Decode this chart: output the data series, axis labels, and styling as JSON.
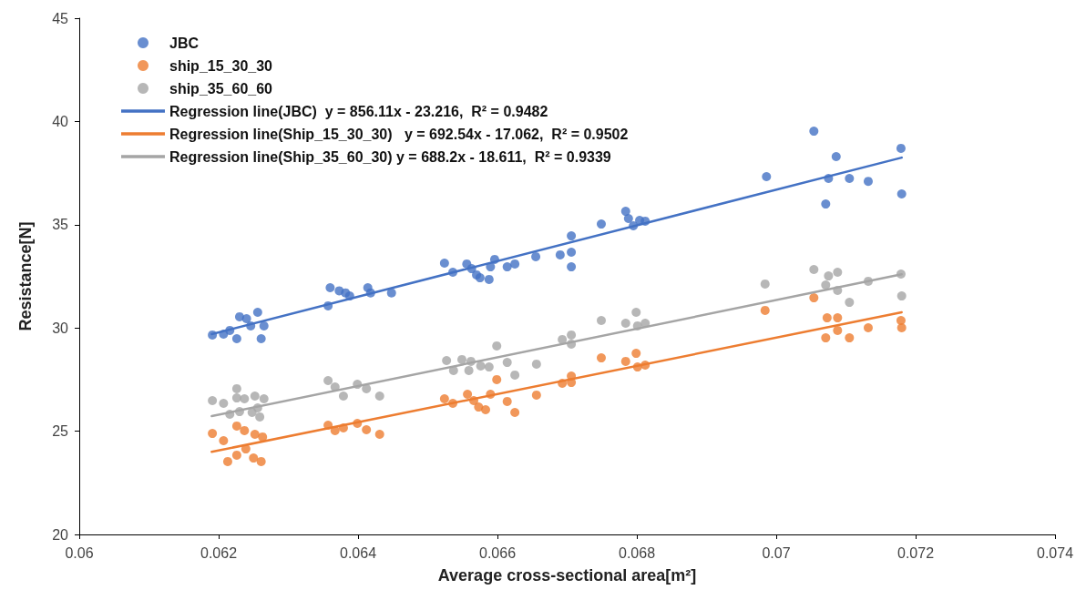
{
  "chart_data": {
    "type": "scatter",
    "xlabel": "Average cross-sectional area[m²]",
    "ylabel": "Resistance[N]",
    "xlim": [
      0.06,
      0.074
    ],
    "xticks": [
      0.06,
      0.062,
      0.064,
      0.066,
      0.068,
      0.07,
      0.072,
      0.074
    ],
    "ylim": [
      20,
      45
    ],
    "yticks": [
      20,
      25,
      30,
      35,
      40,
      45
    ],
    "grid": false,
    "legend": "top left",
    "marker": "circle",
    "series": [
      {
        "name": "JBC",
        "color": "#4472c4",
        "x": [
          0.06191,
          0.06207,
          0.06216,
          0.06226,
          0.0623,
          0.06246,
          0.06256,
          0.06261,
          0.06265,
          0.0624,
          0.06357,
          0.0636,
          0.06373,
          0.06382,
          0.06388,
          0.06414,
          0.06418,
          0.06448,
          0.06524,
          0.06536,
          0.06556,
          0.06563,
          0.0657,
          0.06575,
          0.06588,
          0.0659,
          0.06596,
          0.06614,
          0.06625,
          0.06655,
          0.0669,
          0.06706,
          0.06706,
          0.06706,
          0.06749,
          0.06784,
          0.06788,
          0.06795,
          0.06804,
          0.06812,
          0.06986,
          0.07054,
          0.07071,
          0.07075,
          0.07086,
          0.07105,
          0.07132,
          0.07179,
          0.0718
        ],
        "values": [
          29.66,
          29.7,
          29.88,
          29.48,
          30.54,
          30.1,
          30.76,
          29.48,
          30.1,
          30.45,
          31.07,
          31.95,
          31.8,
          31.7,
          31.55,
          31.95,
          31.7,
          31.7,
          33.14,
          32.7,
          33.1,
          32.87,
          32.57,
          32.43,
          32.35,
          32.96,
          33.32,
          32.96,
          33.1,
          33.45,
          33.54,
          34.46,
          33.67,
          32.96,
          35.03,
          35.65,
          35.3,
          34.95,
          35.21,
          35.17,
          37.33,
          39.53,
          36.0,
          37.24,
          38.3,
          37.24,
          37.1,
          38.7,
          36.49
        ]
      },
      {
        "name": "ship_15_30_30",
        "color": "#ed7d31",
        "x": [
          0.06191,
          0.06207,
          0.06226,
          0.06237,
          0.06252,
          0.06263,
          0.06239,
          0.06226,
          0.06213,
          0.0625,
          0.06261,
          0.06357,
          0.06367,
          0.06379,
          0.06399,
          0.06412,
          0.06431,
          0.06524,
          0.06536,
          0.06557,
          0.06566,
          0.06573,
          0.06583,
          0.0659,
          0.06599,
          0.06614,
          0.06625,
          0.06656,
          0.06693,
          0.06706,
          0.06706,
          0.06749,
          0.06784,
          0.06799,
          0.06801,
          0.06812,
          0.06984,
          0.07054,
          0.07073,
          0.07088,
          0.07088,
          0.07071,
          0.07105,
          0.07132,
          0.07179,
          0.0718
        ],
        "values": [
          24.89,
          24.54,
          25.25,
          25.03,
          24.85,
          24.72,
          24.14,
          23.84,
          23.53,
          23.7,
          23.53,
          25.29,
          25.03,
          25.16,
          25.38,
          25.07,
          24.85,
          26.57,
          26.35,
          26.79,
          26.48,
          26.17,
          26.04,
          26.79,
          27.5,
          26.44,
          25.91,
          26.75,
          27.32,
          27.67,
          27.36,
          28.55,
          28.38,
          28.77,
          28.11,
          28.2,
          30.85,
          31.46,
          30.49,
          30.49,
          29.88,
          29.52,
          29.52,
          30.01,
          30.36,
          30.01
        ]
      },
      {
        "name": "ship_35_60_60",
        "color": "#a5a5a5",
        "x": [
          0.06191,
          0.06207,
          0.06226,
          0.06226,
          0.06237,
          0.06252,
          0.06265,
          0.06216,
          0.0623,
          0.06248,
          0.06259,
          0.06256,
          0.06357,
          0.06367,
          0.06379,
          0.06399,
          0.06412,
          0.06431,
          0.06527,
          0.06537,
          0.06549,
          0.06559,
          0.06562,
          0.06576,
          0.06588,
          0.06599,
          0.06614,
          0.06625,
          0.06656,
          0.06693,
          0.06706,
          0.06706,
          0.06749,
          0.06784,
          0.06799,
          0.06801,
          0.06812,
          0.06984,
          0.07054,
          0.07071,
          0.07075,
          0.07088,
          0.07088,
          0.07105,
          0.07132,
          0.07179,
          0.0718
        ],
        "values": [
          26.48,
          26.35,
          27.06,
          26.61,
          26.57,
          26.7,
          26.57,
          25.82,
          25.95,
          25.91,
          25.69,
          26.13,
          27.45,
          27.14,
          26.7,
          27.27,
          27.06,
          26.7,
          28.42,
          27.94,
          28.47,
          27.94,
          28.38,
          28.16,
          28.11,
          29.13,
          28.33,
          27.72,
          28.25,
          29.44,
          29.66,
          29.22,
          30.36,
          30.23,
          30.76,
          30.1,
          30.23,
          32.13,
          32.83,
          32.08,
          32.52,
          32.7,
          31.82,
          31.24,
          32.26,
          32.61,
          31.55
        ]
      },
      {
        "name": "Regression line(JBC)  y = 856.11x - 23.216,  R² = 0.9482",
        "type": "line",
        "marker": "none",
        "color": "#4472c4",
        "x": [
          0.0619,
          0.0718
        ],
        "values": [
          29.7,
          38.25
        ]
      },
      {
        "name": "Regression line(Ship_15_30_30)   y = 692.54x - 17.062,  R² = 0.9502",
        "type": "line",
        "marker": "none",
        "color": "#ed7d31",
        "x": [
          0.0619,
          0.0718
        ],
        "values": [
          24.0,
          30.76
        ]
      },
      {
        "name": "Regression line(Ship_35_60_30) y = 688.2x - 18.611,  R² = 0.9339",
        "type": "line",
        "marker": "none",
        "color": "#a5a5a5",
        "x": [
          0.0619,
          0.0718
        ],
        "values": [
          25.73,
          32.6
        ]
      }
    ]
  }
}
